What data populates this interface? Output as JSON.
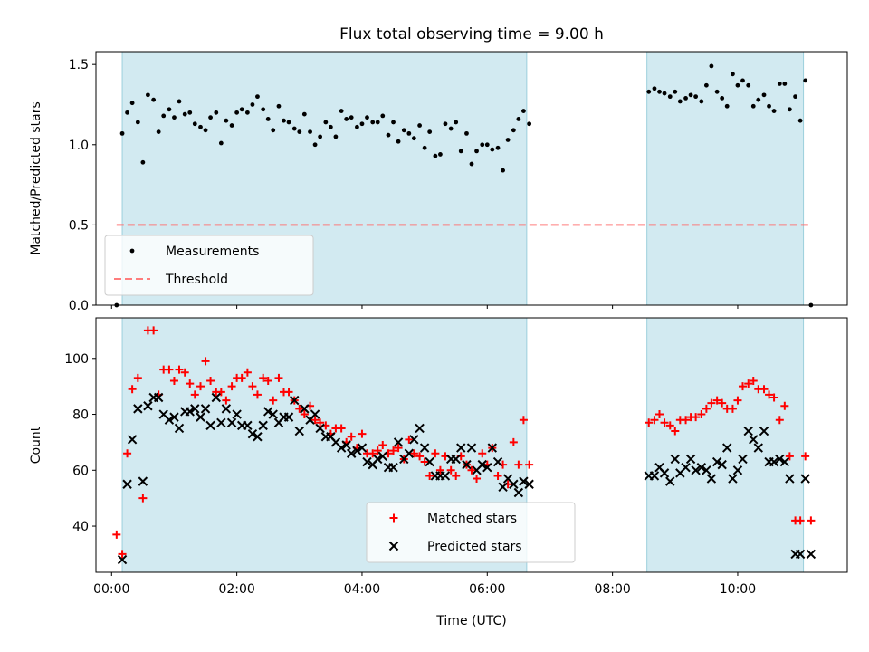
{
  "chart_data": {
    "type": "scatter",
    "title": "Flux total observing time = 9.00 h",
    "xlabel": "Time (UTC)",
    "x_unit": "hours",
    "xlim": [
      -0.25,
      11.75
    ],
    "xticks": [
      0,
      2,
      4,
      6,
      8,
      10
    ],
    "xtick_labels": [
      "00:00",
      "02:00",
      "04:00",
      "06:00",
      "08:00",
      "10:00"
    ],
    "shaded_intervals": [
      [
        0.17,
        6.63
      ],
      [
        8.55,
        11.05
      ]
    ],
    "shade_color": "#add8e6",
    "panels": [
      {
        "ylabel": "Matched/Predicted stars",
        "ylim": [
          0,
          1.58
        ],
        "yticks": [
          0.0,
          0.5,
          1.0,
          1.5
        ],
        "ytick_labels": [
          "0.0",
          "0.5",
          "1.0",
          "1.5"
        ],
        "legend_position": "lower-left",
        "series": [
          {
            "name": "Measurements",
            "marker": "dot",
            "color": "#000000",
            "x": [
              0.08,
              0.17,
              0.25,
              0.33,
              0.42,
              0.5,
              0.58,
              0.67,
              0.75,
              0.83,
              0.92,
              1.0,
              1.08,
              1.17,
              1.25,
              1.33,
              1.42,
              1.5,
              1.58,
              1.67,
              1.75,
              1.83,
              1.92,
              2.0,
              2.08,
              2.17,
              2.25,
              2.33,
              2.42,
              2.5,
              2.58,
              2.67,
              2.75,
              2.83,
              2.92,
              3.0,
              3.08,
              3.17,
              3.25,
              3.33,
              3.42,
              3.5,
              3.58,
              3.67,
              3.75,
              3.83,
              3.92,
              4.0,
              4.08,
              4.17,
              4.25,
              4.33,
              4.42,
              4.5,
              4.58,
              4.67,
              4.75,
              4.83,
              4.92,
              5.0,
              5.08,
              5.17,
              5.25,
              5.33,
              5.42,
              5.5,
              5.58,
              5.67,
              5.75,
              5.83,
              5.92,
              6.0,
              6.08,
              6.17,
              6.25,
              6.33,
              6.42,
              6.5,
              6.58,
              6.67,
              8.58,
              8.67,
              8.75,
              8.83,
              8.92,
              9.0,
              9.08,
              9.17,
              9.25,
              9.33,
              9.42,
              9.5,
              9.58,
              9.67,
              9.75,
              9.83,
              9.92,
              10.0,
              10.08,
              10.17,
              10.25,
              10.33,
              10.42,
              10.5,
              10.58,
              10.67,
              10.75,
              10.83,
              10.92,
              11.0,
              11.08,
              11.17
            ],
            "y": [
              0.0,
              1.07,
              1.2,
              1.26,
              1.14,
              0.89,
              1.31,
              1.28,
              1.08,
              1.18,
              1.22,
              1.17,
              1.27,
              1.19,
              1.2,
              1.13,
              1.11,
              1.09,
              1.17,
              1.2,
              1.01,
              1.15,
              1.12,
              1.2,
              1.22,
              1.2,
              1.25,
              1.3,
              1.22,
              1.16,
              1.09,
              1.24,
              1.15,
              1.14,
              1.1,
              1.08,
              1.19,
              1.08,
              1.0,
              1.05,
              1.14,
              1.11,
              1.05,
              1.21,
              1.16,
              1.17,
              1.11,
              1.13,
              1.17,
              1.14,
              1.14,
              1.18,
              1.06,
              1.14,
              1.02,
              1.09,
              1.07,
              1.04,
              1.12,
              0.98,
              1.08,
              0.93,
              0.94,
              1.13,
              1.1,
              1.14,
              0.96,
              1.07,
              0.88,
              0.96,
              1.0,
              1.0,
              0.97,
              0.98,
              0.84,
              1.03,
              1.09,
              1.16,
              1.21,
              1.13,
              1.33,
              1.35,
              1.33,
              1.32,
              1.3,
              1.33,
              1.27,
              1.29,
              1.31,
              1.3,
              1.27,
              1.37,
              1.49,
              1.33,
              1.29,
              1.24,
              1.44,
              1.37,
              1.4,
              1.37,
              1.24,
              1.28,
              1.31,
              1.24,
              1.21,
              1.38,
              1.38,
              1.22,
              1.3,
              1.15,
              1.4,
              0.0
            ]
          },
          {
            "name": "Threshold",
            "line": "dashed",
            "color": "#ff7070",
            "x": [
              0.08,
              11.17
            ],
            "y": [
              0.5,
              0.5
            ]
          }
        ]
      },
      {
        "ylabel": "Count",
        "ylim": [
          23.5,
          114.5
        ],
        "yticks": [
          40,
          60,
          80,
          100
        ],
        "ytick_labels": [
          "40",
          "60",
          "80",
          "100"
        ],
        "legend_position": "lower-center",
        "series": [
          {
            "name": "Matched stars",
            "marker": "plus",
            "color": "#ff0000",
            "x": [
              0.08,
              0.17,
              0.25,
              0.33,
              0.42,
              0.5,
              0.58,
              0.67,
              0.75,
              0.83,
              0.92,
              1.0,
              1.08,
              1.17,
              1.25,
              1.33,
              1.42,
              1.5,
              1.58,
              1.67,
              1.75,
              1.83,
              1.92,
              2.0,
              2.08,
              2.17,
              2.25,
              2.33,
              2.42,
              2.5,
              2.58,
              2.67,
              2.75,
              2.83,
              2.92,
              3.0,
              3.08,
              3.17,
              3.25,
              3.33,
              3.42,
              3.5,
              3.58,
              3.67,
              3.75,
              3.83,
              3.92,
              4.0,
              4.08,
              4.17,
              4.25,
              4.33,
              4.42,
              4.5,
              4.58,
              4.67,
              4.75,
              4.83,
              4.92,
              5.0,
              5.08,
              5.17,
              5.25,
              5.33,
              5.42,
              5.5,
              5.58,
              5.67,
              5.75,
              5.83,
              5.92,
              6.0,
              6.08,
              6.17,
              6.25,
              6.33,
              6.42,
              6.5,
              6.58,
              6.67,
              8.58,
              8.67,
              8.75,
              8.83,
              8.92,
              9.0,
              9.08,
              9.17,
              9.25,
              9.33,
              9.42,
              9.5,
              9.58,
              9.67,
              9.75,
              9.83,
              9.92,
              10.0,
              10.08,
              10.17,
              10.25,
              10.33,
              10.42,
              10.5,
              10.58,
              10.67,
              10.75,
              10.83,
              10.92,
              11.0,
              11.08,
              11.17
            ],
            "y": [
              37,
              30,
              66,
              89,
              93,
              50,
              110,
              110,
              87,
              96,
              96,
              92,
              96,
              95,
              91,
              87,
              90,
              99,
              92,
              88,
              88,
              85,
              90,
              93,
              93,
              95,
              90,
              87,
              93,
              92,
              85,
              93,
              88,
              88,
              85,
              82,
              80,
              83,
              78,
              77,
              76,
              73,
              75,
              75,
              70,
              72,
              68,
              73,
              66,
              66,
              67,
              69,
              66,
              67,
              68,
              64,
              71,
              66,
              65,
              63,
              58,
              66,
              60,
              65,
              60,
              58,
              65,
              62,
              60,
              57,
              66,
              62,
              68,
              58,
              62,
              55,
              70,
              62,
              78,
              62,
              77,
              78,
              80,
              77,
              76,
              74,
              78,
              78,
              79,
              79,
              80,
              82,
              84,
              85,
              84,
              82,
              82,
              85,
              90,
              91,
              92,
              89,
              89,
              87,
              86,
              78,
              83,
              65,
              42,
              42,
              65,
              42
            ],
            "render_indices": "all"
          },
          {
            "name": "Predicted stars",
            "marker": "x",
            "color": "#000000",
            "x": [
              0.08,
              0.17,
              0.25,
              0.33,
              0.42,
              0.5,
              0.58,
              0.67,
              0.75,
              0.83,
              0.92,
              1.0,
              1.08,
              1.17,
              1.25,
              1.33,
              1.42,
              1.5,
              1.58,
              1.67,
              1.75,
              1.83,
              1.92,
              2.0,
              2.08,
              2.17,
              2.25,
              2.33,
              2.42,
              2.5,
              2.58,
              2.67,
              2.75,
              2.83,
              2.92,
              3.0,
              3.08,
              3.17,
              3.25,
              3.33,
              3.42,
              3.5,
              3.58,
              3.67,
              3.75,
              3.83,
              3.92,
              4.0,
              4.08,
              4.17,
              4.25,
              4.33,
              4.42,
              4.5,
              4.58,
              4.67,
              4.75,
              4.83,
              4.92,
              5.0,
              5.08,
              5.17,
              5.25,
              5.33,
              5.42,
              5.5,
              5.58,
              5.67,
              5.75,
              5.83,
              5.92,
              6.0,
              6.08,
              6.17,
              6.25,
              6.33,
              6.42,
              6.5,
              6.58,
              6.67,
              8.58,
              8.67,
              8.75,
              8.83,
              8.92,
              9.0,
              9.08,
              9.17,
              9.25,
              9.33,
              9.42,
              9.5,
              9.58,
              9.67,
              9.75,
              9.83,
              9.92,
              10.0,
              10.08,
              10.17,
              10.25,
              10.33,
              10.42,
              10.5,
              10.58,
              10.67,
              10.75,
              10.83,
              10.92,
              11.0,
              11.08,
              11.17
            ],
            "y": [
              null,
              28,
              55,
              71,
              82,
              56,
              83,
              86,
              86,
              80,
              78,
              79,
              75,
              81,
              81,
              82,
              79,
              82,
              76,
              86,
              77,
              82,
              77,
              80,
              76,
              76,
              73,
              72,
              76,
              81,
              80,
              77,
              79,
              79,
              85,
              74,
              82,
              78,
              80,
              75,
              72,
              72,
              70,
              68,
              69,
              66,
              67,
              68,
              63,
              62,
              64,
              65,
              61,
              61,
              70,
              64,
              66,
              71,
              75,
              68,
              63,
              58,
              58,
              58,
              64,
              64,
              68,
              62,
              68,
              60,
              62,
              61,
              68,
              63,
              54,
              57,
              55,
              52,
              56,
              55,
              58,
              58,
              61,
              59,
              56,
              64,
              59,
              61,
              64,
              60,
              61,
              60,
              57,
              63,
              62,
              68,
              57,
              60,
              64,
              74,
              71,
              68,
              74,
              63,
              63,
              64,
              63,
              57,
              30,
              30,
              57,
              30
            ]
          }
        ]
      }
    ]
  }
}
